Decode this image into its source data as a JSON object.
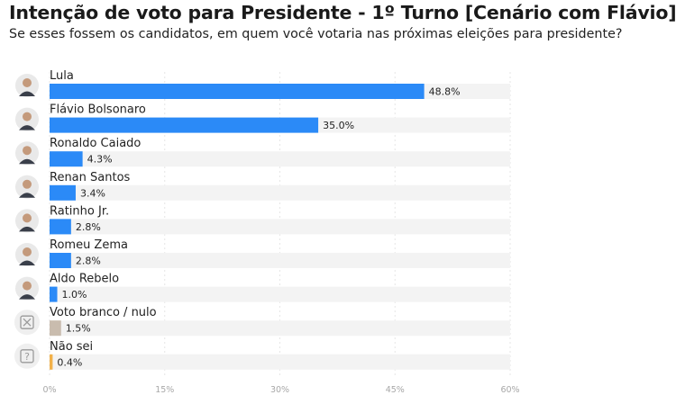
{
  "header": {
    "title": "Intenção de voto para Presidente - 1º Turno [Cenário com Flávio]",
    "subtitle": "Se esses fossem os candidatos, em quem você votaria nas próximas eleições para presidente?"
  },
  "chart_data": {
    "type": "bar",
    "orientation": "horizontal",
    "categories": [
      "Lula",
      "Flávio Bolsonaro",
      "Ronaldo Caiado",
      "Renan Santos",
      "Ratinho Jr.",
      "Romeu Zema",
      "Aldo Rebelo",
      "Voto branco / nulo",
      "Não sei"
    ],
    "values": [
      48.8,
      35.0,
      4.3,
      3.4,
      2.8,
      2.8,
      1.0,
      1.5,
      0.4
    ],
    "value_labels": [
      "48.8%",
      "35.0%",
      "4.3%",
      "3.4%",
      "2.8%",
      "2.8%",
      "1.0%",
      "1.5%",
      "0.4%"
    ],
    "bar_colors": [
      "#2b8af7",
      "#2b8af7",
      "#2b8af7",
      "#2b8af7",
      "#2b8af7",
      "#2b8af7",
      "#2b8af7",
      "#c9bcae",
      "#f2b14a"
    ],
    "avatar_icons": [
      "person-avatar",
      "person-avatar",
      "person-avatar",
      "person-avatar",
      "person-avatar",
      "person-avatar",
      "person-avatar",
      "x-box-icon",
      "question-box-icon"
    ],
    "xlim": [
      0,
      60
    ],
    "xticks": [
      0,
      15,
      30,
      45,
      60
    ],
    "xtick_labels": [
      "0%",
      "15%",
      "30%",
      "45%",
      "60%"
    ],
    "track_color": "#f3f3f3",
    "grid": true
  }
}
